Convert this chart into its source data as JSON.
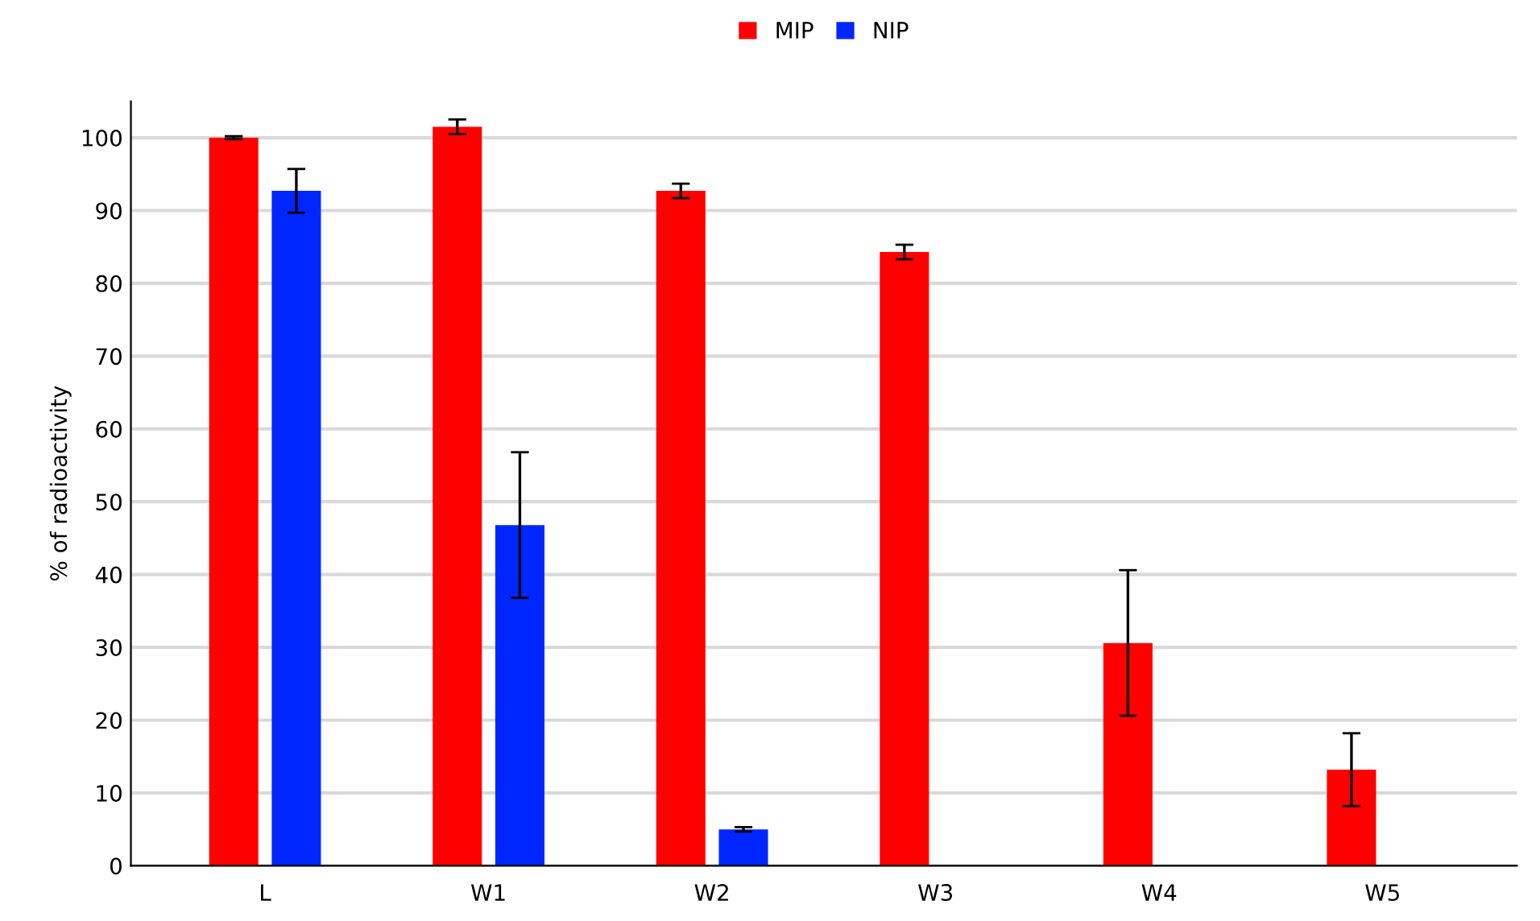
{
  "chart_data": {
    "type": "bar",
    "ylabel": "% of radioactivity",
    "categories": [
      "L",
      "W1",
      "W2",
      "W3",
      "W4",
      "W5"
    ],
    "series": [
      {
        "name": "MIP",
        "color": "#ff0000",
        "values": [
          100,
          101.5,
          92.7,
          84.3,
          30.6,
          13.2
        ],
        "errors": [
          0.2,
          1,
          1,
          1,
          10,
          5
        ]
      },
      {
        "name": "NIP",
        "color": "#0026ff",
        "values": [
          92.7,
          46.8,
          5,
          null,
          null,
          null
        ],
        "errors": [
          3,
          10,
          0.3,
          null,
          null,
          null
        ]
      }
    ],
    "ylim": [
      0,
      105
    ],
    "yticks": [
      0,
      10,
      20,
      30,
      40,
      50,
      60,
      70,
      80,
      90,
      100
    ],
    "grid": "y",
    "legend": "top"
  }
}
